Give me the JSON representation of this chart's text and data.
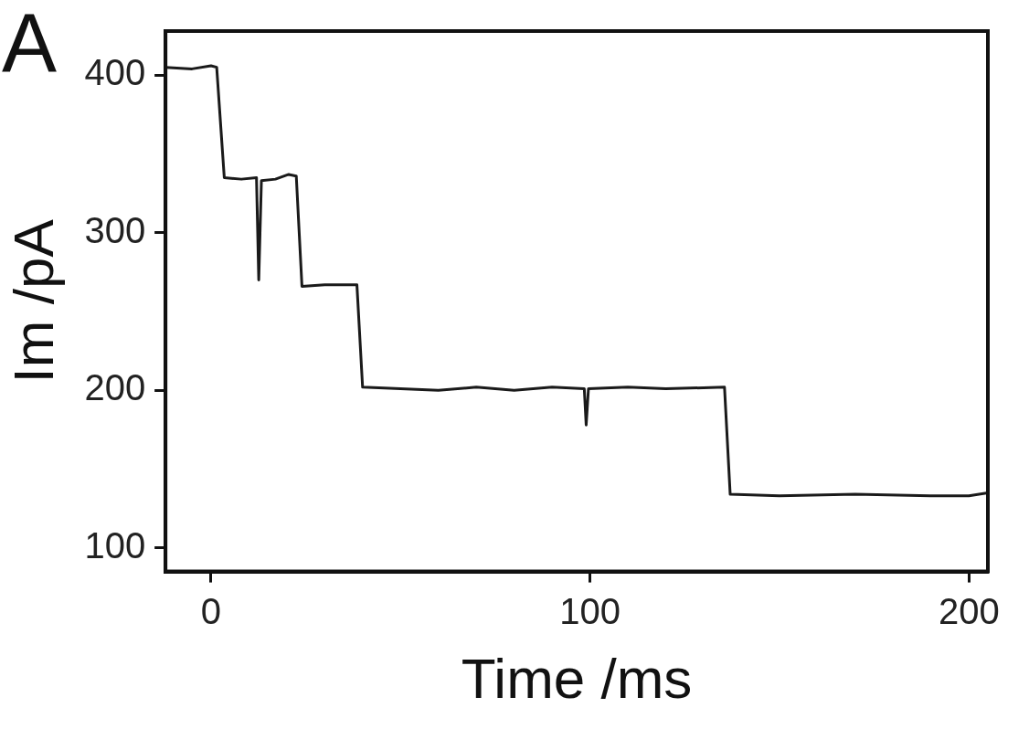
{
  "chart_data": {
    "type": "line",
    "title": "A",
    "xlabel": "Time /ms",
    "ylabel": "Im /pA",
    "series": [
      {
        "color": "#1a1a1a",
        "x": [
          -12,
          -5,
          0,
          1.5,
          3.5,
          8,
          12,
          12.6,
          13.3,
          17,
          20.5,
          22.5,
          24,
          30,
          38.5,
          40,
          50,
          60,
          70,
          80,
          90,
          98.5,
          99,
          99.6,
          110,
          120,
          135.5,
          137,
          150,
          170,
          190,
          200,
          205
        ],
        "values": [
          405,
          404,
          406,
          405,
          335,
          334,
          335,
          270,
          333,
          334,
          337,
          336,
          266,
          267,
          267,
          202,
          201,
          200,
          202,
          200,
          202,
          201,
          178,
          201,
          202,
          201,
          202,
          134,
          133,
          134,
          133,
          133,
          135
        ]
      }
    ],
    "xlim": [
      -12,
      205
    ],
    "ylim": [
      85,
      428
    ],
    "xticks": [
      0,
      100,
      200
    ],
    "yticks": [
      100,
      200,
      300,
      400
    ],
    "grid": false,
    "legend": false,
    "marker": "none",
    "line_style": "solid"
  }
}
